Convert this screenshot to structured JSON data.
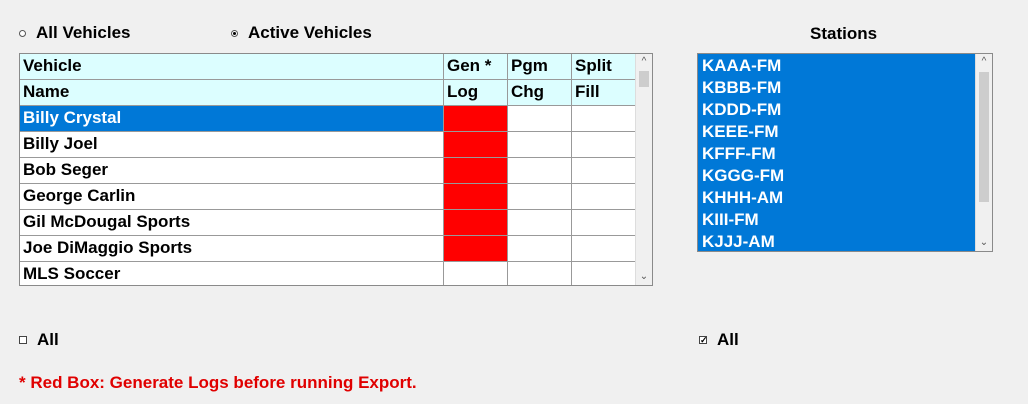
{
  "filter": {
    "all_vehicles_label": "All Vehicles",
    "active_vehicles_label": "Active Vehicles",
    "selected": "active"
  },
  "grid": {
    "header_row1": [
      "Vehicle",
      "Gen *",
      "Pgm",
      "Split"
    ],
    "header_row2": [
      "Name",
      "Log",
      "Chg",
      "Fill"
    ],
    "rows": [
      {
        "name": "Billy Crystal",
        "needs_log": true,
        "selected": true
      },
      {
        "name": "Billy Joel",
        "needs_log": true,
        "selected": false
      },
      {
        "name": "Bob Seger",
        "needs_log": true,
        "selected": false
      },
      {
        "name": "George Carlin",
        "needs_log": true,
        "selected": false
      },
      {
        "name": "Gil McDougal Sports",
        "needs_log": true,
        "selected": false
      },
      {
        "name": "Joe DiMaggio Sports",
        "needs_log": true,
        "selected": false
      },
      {
        "name": "MLS Soccer",
        "needs_log": false,
        "selected": false
      }
    ],
    "select_all_label": "All",
    "select_all_checked": false
  },
  "stations": {
    "title": "Stations",
    "items": [
      "KAAA-FM",
      "KBBB-FM",
      "KDDD-FM",
      "KEEE-FM",
      "KFFF-FM",
      "KGGG-FM",
      "KHHH-AM",
      "KIII-FM",
      "KJJJ-AM"
    ],
    "select_all_label": "All",
    "select_all_checked": true
  },
  "note": "* Red Box: Generate Logs before running Export.",
  "colors": {
    "header_bg": "#dcfeff",
    "selection": "#0078d7",
    "warning_red": "#ff0000",
    "note_text": "#e00000"
  }
}
